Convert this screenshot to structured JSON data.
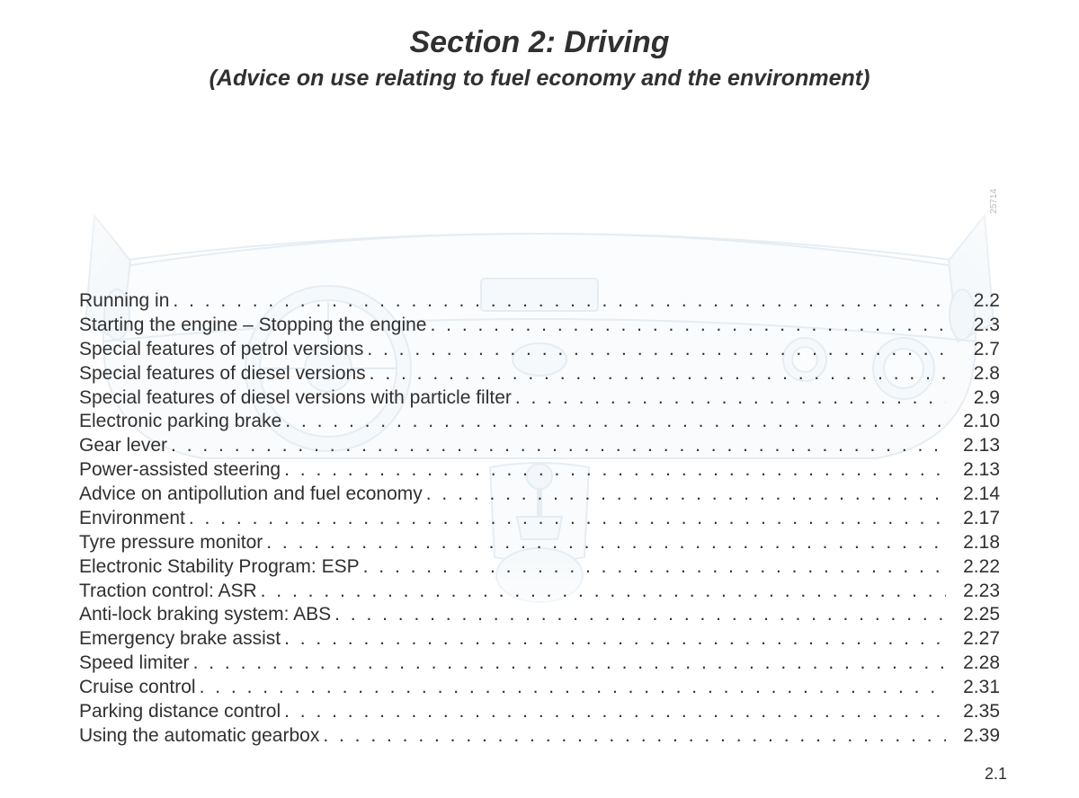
{
  "header": {
    "title": "Section 2: Driving",
    "subtitle": "(Advice on use relating to fuel economy and the environment)"
  },
  "illustration": {
    "code": "25714",
    "stroke_color": "#7fa8c9",
    "fill_color": "#d4e4ef"
  },
  "toc": {
    "entries": [
      {
        "label": "Running in",
        "page": "2.2"
      },
      {
        "label": "Starting the engine – Stopping the engine",
        "page": "2.3"
      },
      {
        "label": "Special features of petrol versions",
        "page": "2.7"
      },
      {
        "label": "Special features of diesel versions",
        "page": "2.8"
      },
      {
        "label": "Special features of diesel versions with particle filter",
        "page": "2.9"
      },
      {
        "label": "Electronic parking brake",
        "page": "2.10"
      },
      {
        "label": "Gear lever",
        "page": "2.13"
      },
      {
        "label": "Power-assisted steering",
        "page": "2.13"
      },
      {
        "label": "Advice on antipollution and fuel economy",
        "page": "2.14"
      },
      {
        "label": "Environment",
        "page": "2.17"
      },
      {
        "label": "Tyre pressure monitor",
        "page": "2.18"
      },
      {
        "label": "Electronic Stability Program: ESP",
        "page": "2.22"
      },
      {
        "label": "Traction control: ASR",
        "page": "2.23"
      },
      {
        "label": "Anti-lock braking system: ABS",
        "page": "2.25"
      },
      {
        "label": "Emergency brake assist",
        "page": "2.27"
      },
      {
        "label": "Speed limiter",
        "page": "2.28"
      },
      {
        "label": "Cruise control",
        "page": "2.31"
      },
      {
        "label": "Parking distance control",
        "page": "2.35"
      },
      {
        "label": "Using the automatic gearbox",
        "page": "2.39"
      }
    ]
  },
  "footer": {
    "page_number": "2.1"
  },
  "style": {
    "text_color": "#303030",
    "background_color": "#ffffff",
    "title_fontsize": 34,
    "subtitle_fontsize": 25,
    "toc_fontsize": 21,
    "line_height": 1.28
  }
}
